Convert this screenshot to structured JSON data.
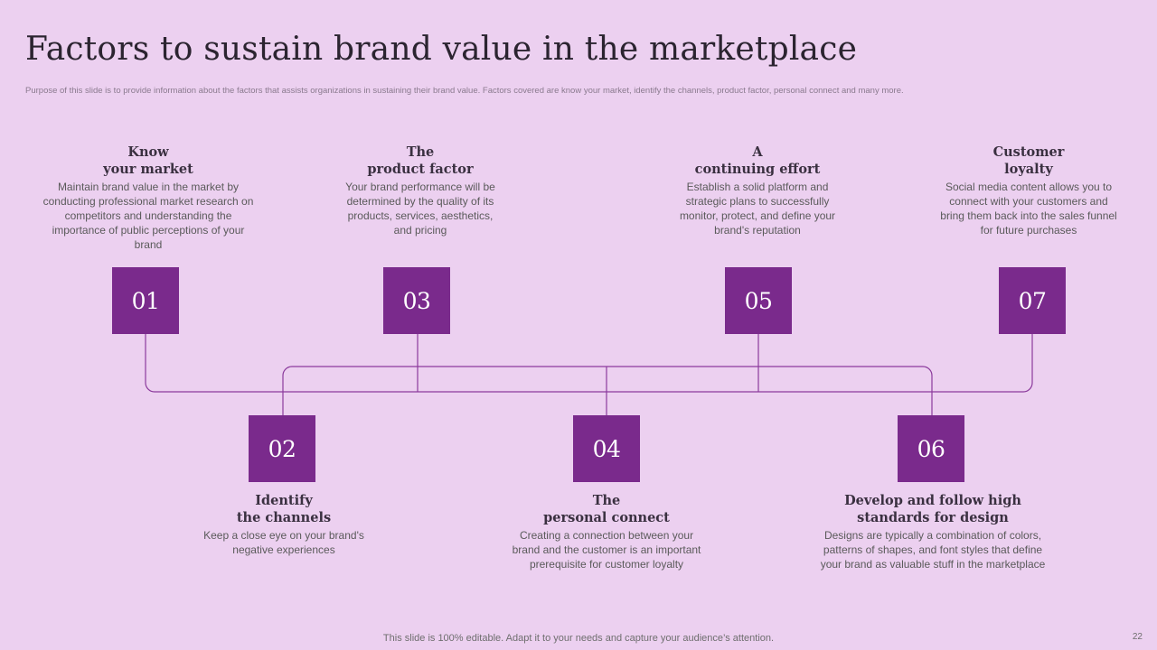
{
  "slide": {
    "title": "Factors to sustain brand value in the marketplace",
    "subtitle": "Purpose of this slide is to provide information about the factors that assists organizations in sustaining their brand value. Factors covered are know your market, identify the channels, product factor, personal connect and many more.",
    "footer": "This slide is 100% editable. Adapt it to your needs and capture your audience’s attention.",
    "page_number": "22"
  },
  "colors": {
    "background": "#ecd0f0",
    "accent": "#7a2a8c",
    "connector": "#8b3a9c"
  },
  "items": [
    {
      "num": "01",
      "title": "Know\nyour market",
      "desc": "Maintain brand value in the market by conducting professional market research on competitors and understanding the importance of public perceptions of your brand"
    },
    {
      "num": "02",
      "title": "Identify\nthe channels",
      "desc": "Keep a close eye on your brand's negative experiences"
    },
    {
      "num": "03",
      "title": "The\nproduct factor",
      "desc": "Your brand performance will be determined by the quality of its products, services, aesthetics, and pricing"
    },
    {
      "num": "04",
      "title": "The\npersonal connect",
      "desc": "Creating a connection between your brand and the customer is an important prerequisite for customer loyalty"
    },
    {
      "num": "05",
      "title": "A\ncontinuing effort",
      "desc": "Establish a solid platform and strategic plans to successfully monitor, protect, and define your brand's reputation"
    },
    {
      "num": "06",
      "title": "Develop and follow high\nstandards for design",
      "desc": "Designs are typically a combination of colors, patterns of shapes, and font styles that define your brand as valuable stuff in the marketplace"
    },
    {
      "num": "07",
      "title": "Customer\nloyalty",
      "desc": "Social media content allows you to connect with your customers and bring them back into the sales funnel for future purchases"
    }
  ]
}
